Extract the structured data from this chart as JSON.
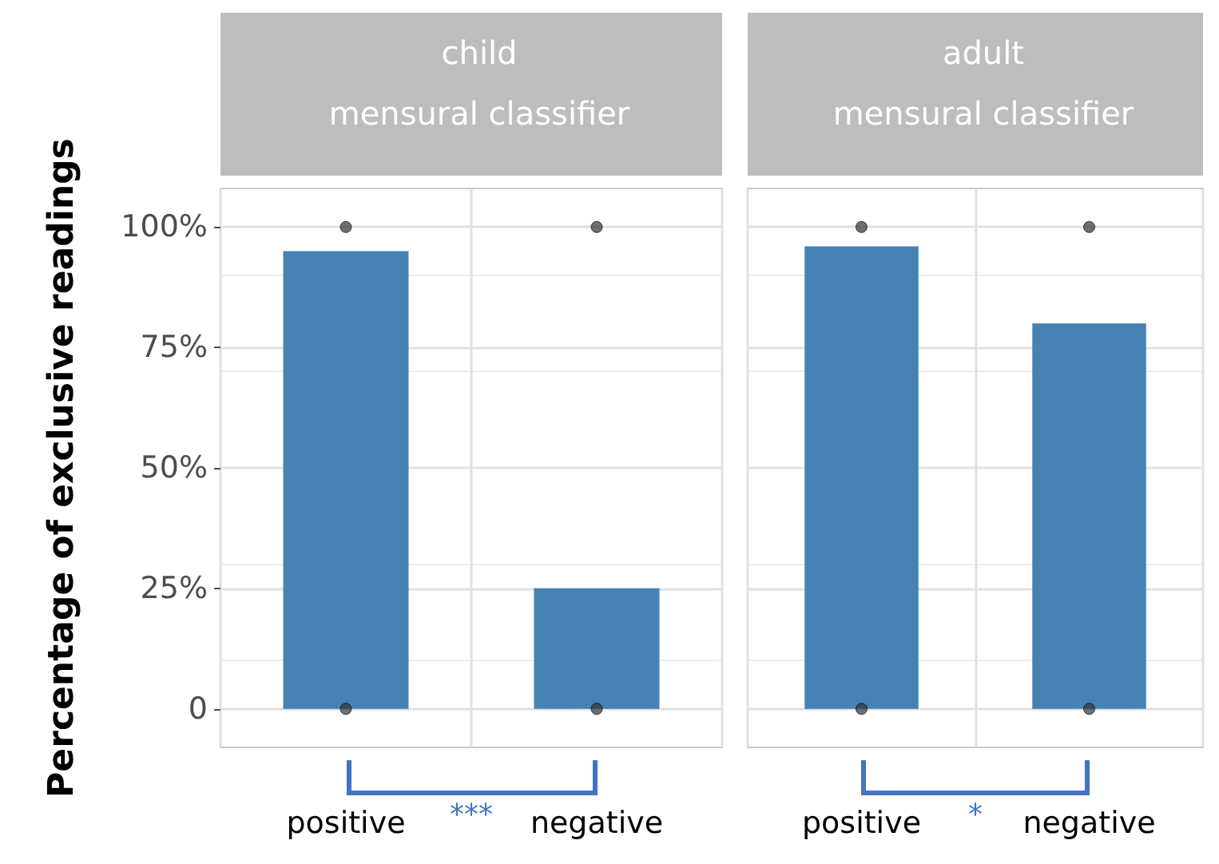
{
  "chart_data": [
    {
      "type": "bar",
      "title": "child",
      "subtitle": "mensural classifier",
      "ylabel": "Percentage of exclusive readings",
      "categories": [
        "positive",
        "negative"
      ],
      "series": [
        {
          "color": "#4682b4",
          "values": [
            95,
            25
          ]
        },
        {
          "type": "scatter",
          "color": "#333333",
          "x": [
            "positive",
            "positive",
            "negative",
            "negative"
          ],
          "values": [
            100,
            0,
            100,
            0
          ]
        }
      ],
      "ylim": [
        -8,
        108
      ],
      "yticks": [
        0,
        {
          "value": 25,
          "label": "25%"
        },
        {
          "value": 50,
          "label": "50%"
        },
        {
          "value": 75,
          "label": "75%"
        },
        {
          "value": 100,
          "label": "100%"
        }
      ],
      "grid": true,
      "marker": "circle",
      "annotations": [
        "***"
      ]
    },
    {
      "type": "bar",
      "title": "adult",
      "subtitle": "mensural classifier",
      "categories": [
        "positive",
        "negative"
      ],
      "series": [
        {
          "color": "#4682b4",
          "values": [
            96,
            80
          ]
        },
        {
          "type": "scatter",
          "color": "#333333",
          "x": [
            "positive",
            "positive",
            "negative",
            "negative"
          ],
          "values": [
            100,
            0,
            100,
            0
          ]
        }
      ],
      "ylim": [
        -8,
        108
      ],
      "yticks": [
        0,
        25,
        50,
        75,
        100
      ],
      "grid": true,
      "marker": "circle",
      "tick_labels": "x",
      "annotations": [
        "*"
      ]
    }
  ]
}
